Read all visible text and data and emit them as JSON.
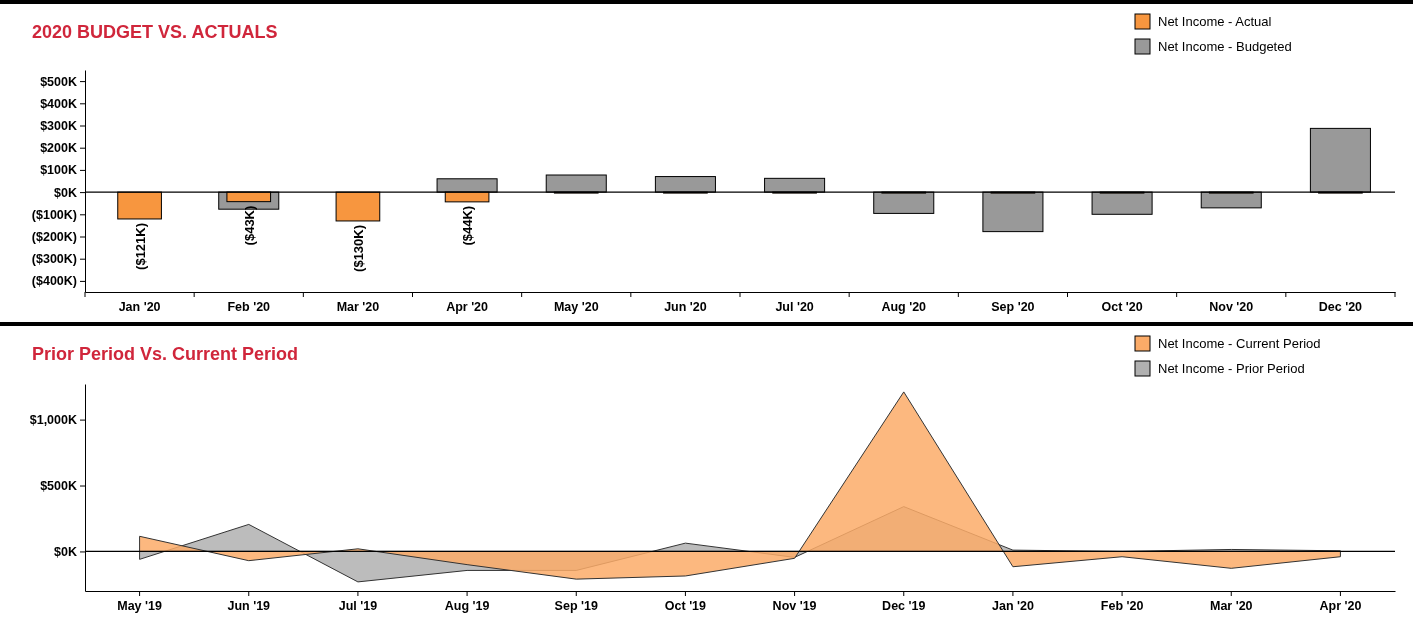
{
  "chart_data": [
    {
      "type": "bar",
      "title": "2020 BUDGET VS. ACTUALS",
      "categories": [
        "Jan '20",
        "Feb '20",
        "Mar '20",
        "Apr '20",
        "May '20",
        "Jun '20",
        "Jul '20",
        "Aug '20",
        "Sep '20",
        "Oct '20",
        "Nov '20",
        "Dec '20"
      ],
      "series": [
        {
          "name": "Net Income - Actual",
          "color": "#f7963f",
          "values": [
            -121,
            -43,
            -130,
            -44,
            0,
            0,
            0,
            0,
            0,
            0,
            0,
            0
          ],
          "value_labels": [
            "($121K)",
            "($43K)",
            "($130K)",
            "($44K)",
            null,
            null,
            null,
            null,
            null,
            null,
            null,
            null
          ]
        },
        {
          "name": "Net Income - Budgeted",
          "color": "#999999",
          "values": [
            null,
            -77,
            null,
            60,
            77,
            70,
            62,
            -96,
            -178,
            -100,
            -71,
            287
          ]
        }
      ],
      "ylim": [
        -450,
        550
      ],
      "yticks": [
        {
          "value": -400,
          "label": "($400K)"
        },
        {
          "value": -300,
          "label": "($300K)"
        },
        {
          "value": -200,
          "label": "($200K)"
        },
        {
          "value": -100,
          "label": "($100K)"
        },
        {
          "value": 0,
          "label": "$0K"
        },
        {
          "value": 100,
          "label": "$100K"
        },
        {
          "value": 200,
          "label": "$200K"
        },
        {
          "value": 300,
          "label": "$300K"
        },
        {
          "value": 400,
          "label": "$400K"
        },
        {
          "value": 500,
          "label": "$500K"
        }
      ],
      "ref_lines": [
        {
          "axis": "y",
          "value": 0,
          "color": "#000000"
        }
      ],
      "legend": "top right",
      "grid": false
    },
    {
      "type": "area",
      "title": "Prior Period Vs. Current Period",
      "categories": [
        "May '19",
        "Jun '19",
        "Jul '19",
        "Aug '19",
        "Sep '19",
        "Oct '19",
        "Nov '19",
        "Dec '19",
        "Jan '20",
        "Feb '20",
        "Mar '20",
        "Apr '20"
      ],
      "series": [
        {
          "name": "Net Income - Current Period",
          "color": "#fbab68",
          "values": [
            115,
            -70,
            20,
            -100,
            -210,
            -186,
            -52,
            1210,
            -116,
            -40,
            -128,
            -40
          ]
        },
        {
          "name": "Net Income - Prior Period",
          "color": "#b0b0b0",
          "values": [
            -60,
            205,
            -231,
            -144,
            -144,
            63,
            -45,
            340,
            10,
            0,
            15,
            5
          ]
        }
      ],
      "ylim": [
        -300,
        1270
      ],
      "yticks": [
        {
          "value": 0,
          "label": "$0K"
        },
        {
          "value": 500,
          "label": "$500K"
        },
        {
          "value": 1000,
          "label": "$1,000K"
        }
      ],
      "ref_lines": [
        {
          "axis": "y",
          "value": 0,
          "color": "#000000"
        }
      ],
      "legend": "top right",
      "grid": false
    }
  ]
}
